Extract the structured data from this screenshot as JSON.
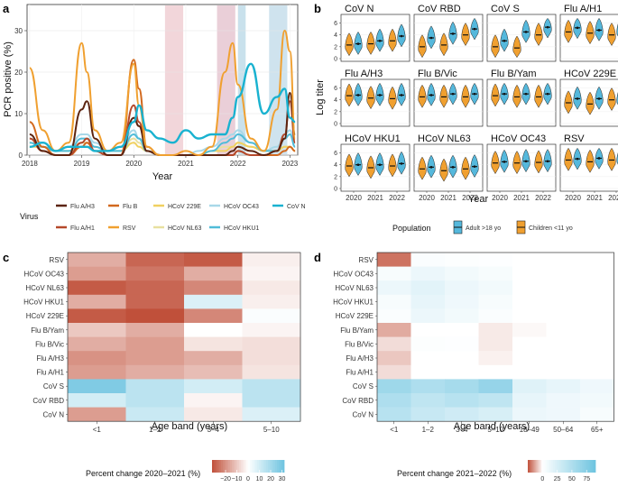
{
  "colors": {
    "flu_a_h3": "#5c2410",
    "flu_a_h1": "#b5482a",
    "flu_b": "#d2691e",
    "rsv": "#f0a030",
    "hcov_229e": "#f0d060",
    "hcov_nl63": "#e8e0a0",
    "hcov_oc43": "#a8d8e8",
    "hcov_hku1": "#50bcd8",
    "cov_n": "#19b2d0",
    "adult": "#55b8dc",
    "child": "#f0a030",
    "neg": "#c0503a",
    "pos": "#6ec4e0"
  },
  "panel_a": {
    "label": "a",
    "chart_data": {
      "type": "line",
      "ylabel": "PCR positive (%)",
      "xlabel": "Year",
      "ylim": [
        0,
        35
      ],
      "yticks": [
        "0",
        "10",
        "20",
        "30"
      ],
      "xticks": [
        "2018",
        "2019",
        "2020",
        "2021",
        "2022",
        "2023"
      ],
      "shaded_periods": [
        [
          2020.6,
          2020.95
        ],
        [
          2021.6,
          2021.95
        ],
        [
          2022.0,
          2022.15
        ],
        [
          2022.6,
          2022.95
        ]
      ],
      "x": [
        2018.0,
        2018.25,
        2018.5,
        2018.75,
        2019.0,
        2019.1,
        2019.25,
        2019.5,
        2019.75,
        2020.0,
        2020.1,
        2020.25,
        2020.5,
        2020.75,
        2021.0,
        2021.25,
        2021.5,
        2021.75,
        2021.9,
        2022.0,
        2022.25,
        2022.5,
        2022.75,
        2022.9,
        2023.0,
        2023.1
      ],
      "series": [
        {
          "name": "Flu A/H3",
          "values": [
            5,
            1,
            0,
            0,
            11,
            13,
            4,
            0,
            0,
            9,
            7,
            1,
            0,
            0,
            0,
            0,
            0,
            0,
            1,
            2,
            1,
            0,
            1,
            4,
            15,
            5
          ]
        },
        {
          "name": "Flu A/H1",
          "values": [
            4,
            1,
            0,
            0,
            3,
            4,
            1,
            0,
            0,
            12,
            8,
            1,
            0,
            0,
            0,
            0,
            0,
            0,
            0,
            1,
            0,
            0,
            1,
            5,
            13,
            3
          ]
        },
        {
          "name": "Flu B",
          "values": [
            8,
            2,
            0,
            0,
            2,
            3,
            1,
            0,
            0,
            23,
            16,
            2,
            0,
            0,
            0,
            0,
            0,
            0,
            0,
            1,
            0,
            0,
            0,
            1,
            2,
            1
          ]
        },
        {
          "name": "RSV",
          "values": [
            21,
            6,
            1,
            3,
            27,
            20,
            6,
            1,
            3,
            22,
            12,
            2,
            0,
            0,
            1,
            0,
            2,
            20,
            27,
            17,
            4,
            1,
            11,
            30,
            25,
            4
          ]
        },
        {
          "name": "HCoV 229E",
          "values": [
            2,
            2,
            1,
            1,
            2,
            2,
            1,
            1,
            1,
            3,
            2,
            1,
            0,
            0,
            0,
            0,
            1,
            1,
            2,
            3,
            2,
            1,
            1,
            2,
            2,
            1
          ]
        },
        {
          "name": "HCoV NL63",
          "values": [
            3,
            2,
            1,
            1,
            3,
            3,
            2,
            1,
            1,
            4,
            3,
            1,
            0,
            0,
            0,
            0,
            1,
            2,
            2,
            3,
            2,
            1,
            1,
            2,
            2,
            1
          ]
        },
        {
          "name": "HCoV OC43",
          "values": [
            4,
            3,
            1,
            2,
            5,
            5,
            3,
            1,
            2,
            6,
            4,
            1,
            0,
            0,
            0,
            1,
            2,
            4,
            5,
            6,
            3,
            1,
            2,
            5,
            6,
            2
          ]
        },
        {
          "name": "HCoV HKU1",
          "values": [
            3,
            2,
            1,
            1,
            4,
            4,
            2,
            1,
            1,
            5,
            4,
            1,
            0,
            0,
            0,
            0,
            1,
            3,
            4,
            5,
            3,
            1,
            1,
            4,
            5,
            2
          ]
        },
        {
          "name": "CoV N",
          "values": [
            2,
            3,
            1,
            2,
            2,
            2,
            1,
            1,
            2,
            8,
            12,
            6,
            4,
            3,
            6,
            4,
            5,
            5,
            9,
            14,
            22,
            10,
            14,
            16,
            9,
            8
          ]
        }
      ]
    },
    "legend": {
      "title": "Virus",
      "items": [
        "Flu A/H3",
        "Flu B",
        "HCoV 229E",
        "HCoV OC43",
        "CoV N",
        "Flu A/H1",
        "RSV",
        "HCoV NL63",
        "HCoV HKU1"
      ]
    }
  },
  "panel_b": {
    "label": "b",
    "chart_data": {
      "type": "violin",
      "ylabel": "Log titer",
      "xlabel": "Year",
      "ylim": [
        0,
        7
      ],
      "yticks": [
        "0",
        "2",
        "4",
        "6"
      ],
      "xticks": [
        "2020",
        "2021",
        "2022"
      ],
      "panels": [
        {
          "name": "CoV N",
          "adult": [
            2.5,
            3.0,
            3.8
          ],
          "child": [
            2.3,
            2.5,
            3.0
          ]
        },
        {
          "name": "CoV RBD",
          "adult": [
            3.5,
            4.2,
            5.0
          ],
          "child": [
            2.0,
            2.3,
            4.0
          ]
        },
        {
          "name": "CoV S",
          "adult": [
            3.0,
            4.5,
            5.3
          ],
          "child": [
            2.0,
            1.8,
            4.0
          ]
        },
        {
          "name": "Flu A/H1",
          "adult": [
            5.2,
            4.8,
            4.8
          ],
          "child": [
            4.5,
            4.3,
            4.0
          ]
        },
        {
          "name": "Flu A/H3",
          "adult": [
            4.8,
            4.8,
            4.8
          ],
          "child": [
            4.7,
            4.3,
            4.2
          ]
        },
        {
          "name": "Flu B/Vic",
          "adult": [
            4.8,
            5.0,
            5.0
          ],
          "child": [
            4.5,
            4.5,
            4.5
          ]
        },
        {
          "name": "Flu B/Yam",
          "adult": [
            5.0,
            5.0,
            5.0
          ],
          "child": [
            4.7,
            4.5,
            4.5
          ]
        },
        {
          "name": "HCoV 229E",
          "adult": [
            4.2,
            4.2,
            4.2
          ],
          "child": [
            3.5,
            3.3,
            4.0
          ]
        },
        {
          "name": "HCoV HKU1",
          "adult": [
            4.0,
            4.0,
            4.2
          ],
          "child": [
            3.8,
            3.5,
            3.8
          ]
        },
        {
          "name": "HCoV NL63",
          "adult": [
            3.6,
            3.6,
            3.7
          ],
          "child": [
            3.3,
            3.0,
            3.3
          ]
        },
        {
          "name": "HCoV OC43",
          "adult": [
            4.5,
            4.6,
            4.6
          ],
          "child": [
            4.3,
            4.3,
            4.4
          ]
        },
        {
          "name": "RSV",
          "adult": [
            5.0,
            5.1,
            5.1
          ],
          "child": [
            4.8,
            4.5,
            4.8
          ]
        }
      ]
    },
    "legend": {
      "title": "Population",
      "items": [
        "Adult >18 yo",
        "Children <11 yo"
      ]
    }
  },
  "panel_c": {
    "label": "c",
    "chart_data": {
      "type": "heatmap",
      "xlabel": "Age band (years)",
      "rows": [
        "RSV",
        "HCoV OC43",
        "HCoV NL63",
        "HCoV HKU1",
        "HCoV 229E",
        "Flu B/Yam",
        "Flu B/Vic",
        "Flu A/H3",
        "Flu A/H1",
        "CoV S",
        "CoV RBD",
        "CoV N"
      ],
      "cols": [
        "<1",
        "1–2",
        "3–4",
        "5–10"
      ],
      "values": [
        [
          -15,
          -28,
          -30,
          -3
        ],
        [
          -18,
          -25,
          -15,
          -2
        ],
        [
          -30,
          -28,
          -22,
          -4
        ],
        [
          -15,
          -28,
          8,
          -3
        ],
        [
          -30,
          -32,
          -22,
          1
        ],
        [
          -10,
          -15,
          0,
          -2
        ],
        [
          -15,
          -18,
          -5,
          -6
        ],
        [
          -20,
          -18,
          -15,
          -6
        ],
        [
          -18,
          -15,
          -12,
          -5
        ],
        [
          28,
          15,
          10,
          15
        ],
        [
          10,
          15,
          -2,
          15
        ],
        [
          -18,
          12,
          -4,
          8
        ]
      ],
      "legend_title": "Percent change 2020–2021 (%)",
      "legend_ticks": [
        "−20",
        "−10",
        "0",
        "10",
        "20",
        "30"
      ],
      "range": [
        -32,
        32
      ]
    }
  },
  "panel_d": {
    "label": "d",
    "chart_data": {
      "type": "heatmap",
      "xlabel": "Age band (years)",
      "rows": [
        "RSV",
        "HCoV OC43",
        "HCoV NL63",
        "HCoV HKU1",
        "HCoV 229E",
        "Flu B/Yam",
        "Flu B/Vic",
        "Flu A/H3",
        "Flu A/H1",
        "CoV S",
        "CoV RBD",
        "CoV N"
      ],
      "cols": [
        "<1",
        "1–2",
        "3–4",
        "5–10",
        "18–49",
        "50–64",
        "65+"
      ],
      "values": [
        [
          -20,
          3,
          2,
          1,
          0,
          0,
          0
        ],
        [
          5,
          12,
          8,
          5,
          0,
          0,
          0
        ],
        [
          12,
          18,
          12,
          8,
          0,
          0,
          0
        ],
        [
          5,
          15,
          10,
          5,
          0,
          0,
          0
        ],
        [
          3,
          12,
          8,
          3,
          0,
          0,
          0
        ],
        [
          -12,
          0,
          0,
          -3,
          -1,
          0,
          0
        ],
        [
          -5,
          2,
          1,
          -3,
          0,
          0,
          0
        ],
        [
          -8,
          0,
          0,
          -2,
          0,
          0,
          0
        ],
        [
          -5,
          0,
          0,
          0,
          0,
          0,
          0
        ],
        [
          60,
          50,
          55,
          65,
          20,
          15,
          10
        ],
        [
          50,
          40,
          45,
          40,
          15,
          10,
          8
        ],
        [
          45,
          35,
          30,
          25,
          12,
          10,
          5
        ]
      ],
      "legend_title": "Percent change 2021–2022 (%)",
      "legend_ticks": [
        "0",
        "25",
        "50",
        "75"
      ],
      "range": [
        -25,
        90
      ]
    }
  }
}
